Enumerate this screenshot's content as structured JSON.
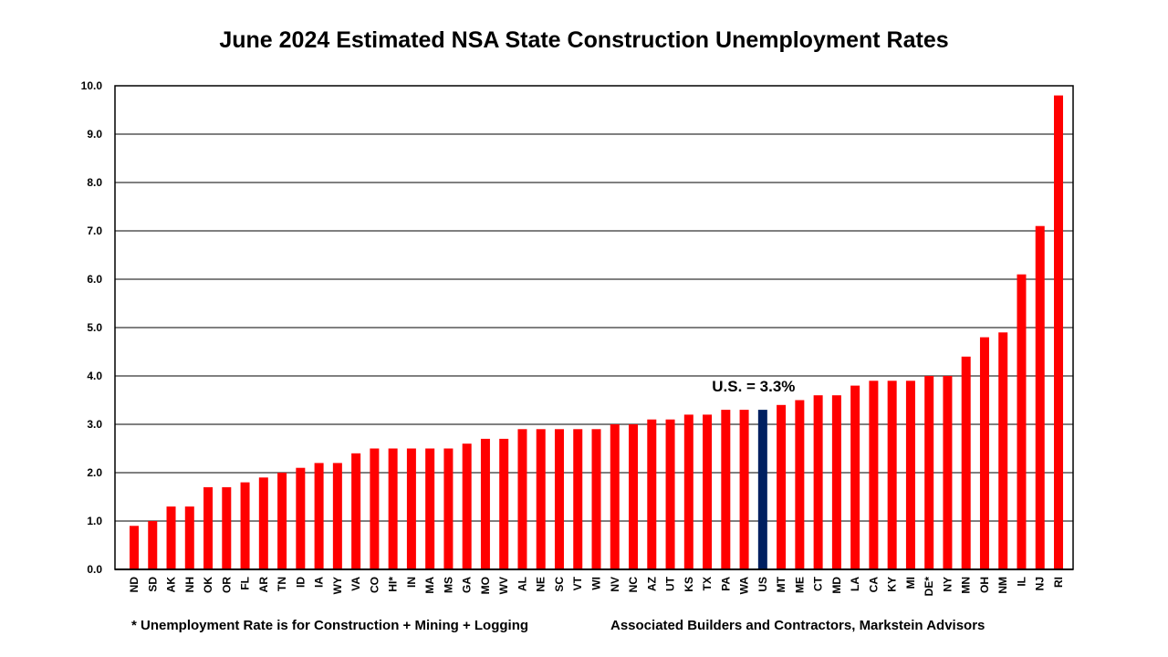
{
  "chart_data": {
    "type": "bar",
    "title": "June 2024 Estimated NSA State Construction Unemployment Rates",
    "categories": [
      "ND",
      "SD",
      "AK",
      "NH",
      "OK",
      "OR",
      "FL",
      "AR",
      "TN",
      "ID",
      "IA",
      "WY",
      "VA",
      "CO",
      "HI*",
      "IN",
      "MA",
      "MS",
      "GA",
      "MO",
      "WV",
      "AL",
      "NE",
      "SC",
      "VT",
      "WI",
      "NV",
      "NC",
      "AZ",
      "UT",
      "KS",
      "TX",
      "PA",
      "WA",
      "US",
      "MT",
      "ME",
      "CT",
      "MD",
      "LA",
      "CA",
      "KY",
      "MI",
      "DE*",
      "NY",
      "MN",
      "OH",
      "NM",
      "IL",
      "NJ",
      "RI"
    ],
    "values": [
      0.9,
      1.0,
      1.3,
      1.3,
      1.7,
      1.7,
      1.8,
      1.9,
      2.0,
      2.1,
      2.2,
      2.2,
      2.4,
      2.5,
      2.5,
      2.5,
      2.5,
      2.5,
      2.6,
      2.7,
      2.7,
      2.9,
      2.9,
      2.9,
      2.9,
      2.9,
      3.0,
      3.0,
      3.1,
      3.1,
      3.2,
      3.2,
      3.3,
      3.3,
      3.3,
      3.4,
      3.5,
      3.6,
      3.6,
      3.8,
      3.9,
      3.9,
      3.9,
      4.0,
      4.0,
      4.4,
      4.8,
      4.9,
      6.1,
      7.1,
      9.8
    ],
    "ylim": [
      0,
      10
    ],
    "yticks": [
      "0.0",
      "1.0",
      "2.0",
      "3.0",
      "4.0",
      "5.0",
      "6.0",
      "7.0",
      "8.0",
      "9.0",
      "10.0"
    ],
    "grid": true,
    "xlabel": "",
    "ylabel": "",
    "annotation": "U.S. = 3.3%",
    "highlight_category": "US",
    "colors": {
      "bar": "#ff0000",
      "highlight": "#002060"
    }
  },
  "footnote": "* Unemployment Rate is for Construction + Mining + Logging",
  "source": "Associated Builders and Contractors, Markstein Advisors"
}
